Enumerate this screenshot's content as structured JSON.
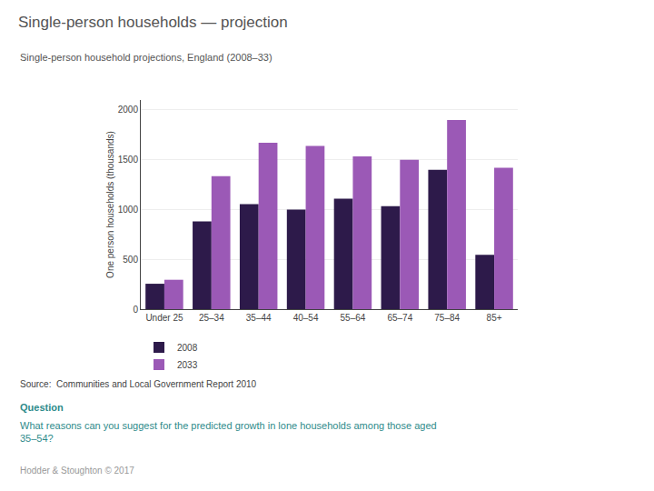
{
  "chart_data": {
    "type": "bar",
    "title": "Single-person households — projection",
    "subtitle": "Single-person household projections, England (2008–33)",
    "annotations": [
      "Source:  Communities and Local Government Report 2010",
      "Question",
      "What reasons can you suggest for the predicted growth in lone households among those aged\n35–54?",
      "Hodder & Stoughton © 2017"
    ],
    "categories": [
      "Under 25",
      "25–34",
      "35–44",
      "40–54",
      "55–64",
      "65–74",
      "75–84",
      "85+"
    ],
    "series": [
      {
        "name": "2008",
        "color": "#2d1a4a",
        "values": [
          255,
          880,
          1055,
          1000,
          1110,
          1035,
          1400,
          545
        ]
      },
      {
        "name": "2033",
        "color": "#9b59b6",
        "values": [
          295,
          1335,
          1670,
          1640,
          1535,
          1500,
          1900,
          1420
        ]
      }
    ],
    "ylabel": "One person households (thousands)",
    "ylim": [
      0,
      2100
    ],
    "yticks": [
      0,
      500,
      1000,
      1500,
      2000
    ],
    "grid": true,
    "legend": "lower left"
  }
}
